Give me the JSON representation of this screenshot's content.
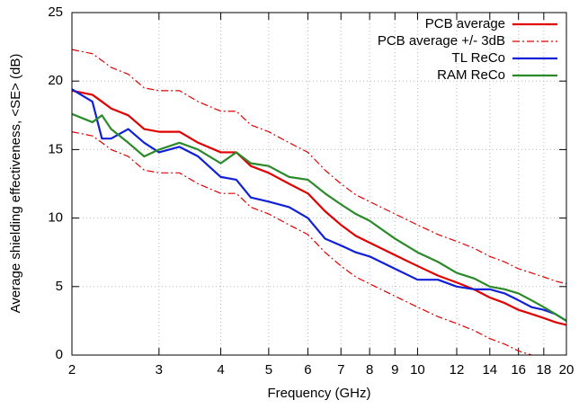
{
  "chart_data": {
    "type": "line",
    "x_label": "Frequency (GHz)",
    "y_label": "Average shielding effectiveness, <SE> (dB)",
    "x_log": true,
    "grid": true,
    "legend_position": "top-right",
    "xlim": [
      2,
      20
    ],
    "ylim": [
      0,
      25
    ],
    "xticks": [
      2,
      3,
      4,
      5,
      6,
      7,
      8,
      9,
      10,
      12,
      14,
      16,
      18,
      20
    ],
    "yticks": [
      0,
      5,
      10,
      15,
      20,
      25
    ],
    "x": [
      2,
      2.2,
      2.3,
      2.4,
      2.6,
      2.8,
      3,
      3.3,
      3.6,
      4,
      4.3,
      4.6,
      5,
      5.5,
      6,
      6.5,
      7,
      7.5,
      8,
      9,
      10,
      11,
      12,
      13,
      14,
      15,
      16,
      17,
      18,
      19,
      20
    ],
    "series": [
      {
        "name": "PCB average",
        "color": "#e00000",
        "dashed": false,
        "values": [
          19.3,
          19.0,
          18.5,
          18.0,
          17.5,
          16.5,
          16.3,
          16.3,
          15.5,
          14.8,
          14.8,
          13.8,
          13.3,
          12.5,
          11.8,
          10.5,
          9.5,
          8.7,
          8.2,
          7.3,
          6.5,
          5.8,
          5.3,
          4.8,
          4.2,
          3.8,
          3.3,
          3.0,
          2.7,
          2.4,
          2.2
        ]
      },
      {
        "name": "PCB average +/- 3dB",
        "color": "#e00000",
        "dashed": true,
        "upper": [
          22.3,
          22.0,
          21.5,
          21.0,
          20.5,
          19.5,
          19.3,
          19.3,
          18.5,
          17.8,
          17.8,
          16.8,
          16.3,
          15.5,
          14.8,
          13.5,
          12.5,
          11.7,
          11.2,
          10.3,
          9.5,
          8.8,
          8.3,
          7.8,
          7.2,
          6.8,
          6.3,
          6.0,
          5.7,
          5.4,
          5.2
        ],
        "lower": [
          16.3,
          16.0,
          15.5,
          15.0,
          14.5,
          13.5,
          13.3,
          13.3,
          12.5,
          11.8,
          11.8,
          10.8,
          10.3,
          9.5,
          8.8,
          7.5,
          6.5,
          5.7,
          5.2,
          4.3,
          3.5,
          2.8,
          2.3,
          1.8,
          1.2,
          0.8,
          0.3,
          0.0,
          -0.3,
          -0.6,
          -0.8
        ]
      },
      {
        "name": "TL ReCo",
        "color": "#1020d8",
        "dashed": false,
        "values": [
          19.4,
          18.5,
          15.8,
          15.8,
          16.5,
          15.5,
          14.8,
          15.2,
          14.5,
          13.0,
          12.8,
          11.5,
          11.2,
          10.8,
          10.0,
          8.5,
          8.0,
          7.5,
          7.2,
          6.3,
          5.5,
          5.5,
          5.0,
          4.8,
          4.8,
          4.5,
          4.0,
          3.5,
          3.3,
          3.0,
          2.5
        ]
      },
      {
        "name": "RAM ReCo",
        "color": "#2a8a2a",
        "dashed": false,
        "values": [
          17.6,
          17.0,
          17.5,
          16.5,
          15.5,
          14.5,
          15.0,
          15.5,
          15.0,
          14.0,
          14.8,
          14.0,
          13.8,
          13.0,
          12.8,
          11.8,
          11.0,
          10.3,
          9.8,
          8.5,
          7.5,
          6.8,
          6.0,
          5.6,
          5.0,
          4.8,
          4.5,
          4.0,
          3.5,
          3.0,
          2.5
        ]
      }
    ]
  }
}
